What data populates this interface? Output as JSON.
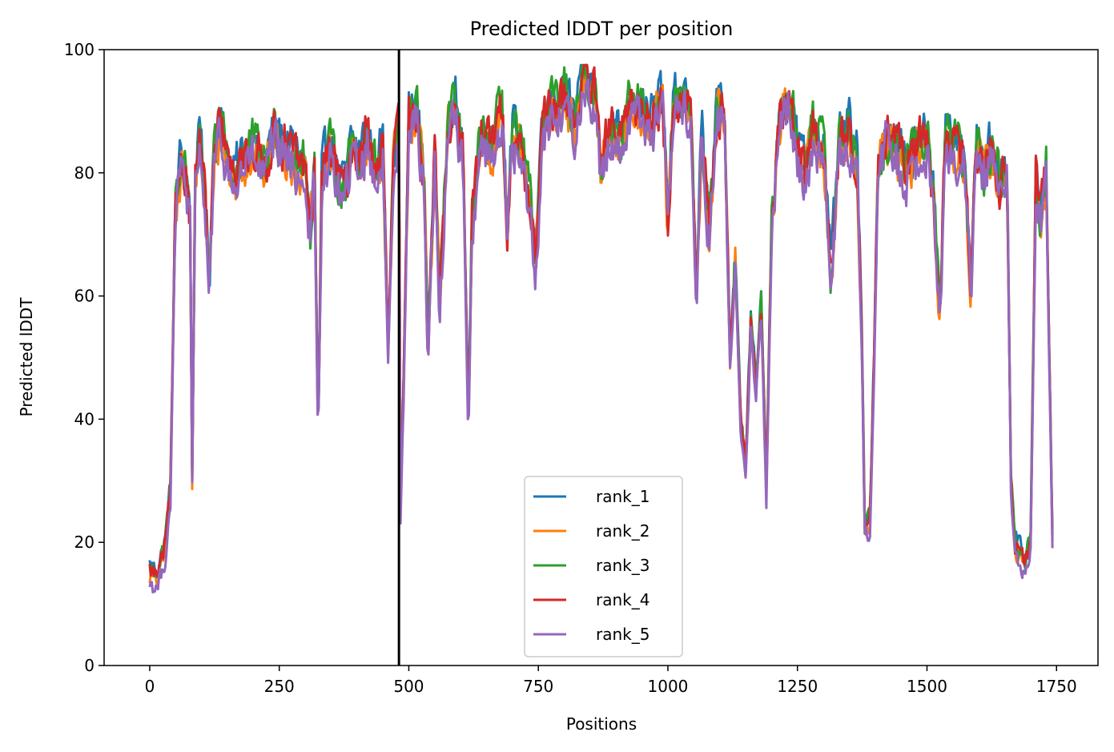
{
  "chart_data": {
    "type": "line",
    "title": "Predicted lDDT per position",
    "xlabel": "Positions",
    "ylabel": "Predicted lDDT",
    "xlim": [
      -88,
      1830
    ],
    "ylim": [
      0,
      100
    ],
    "xticks": [
      0,
      250,
      500,
      750,
      1000,
      1250,
      1500,
      1750
    ],
    "yticks": [
      0,
      20,
      40,
      60,
      80,
      100
    ],
    "grid": false,
    "legend_position": "lower center",
    "vline": {
      "x": 481,
      "color": "#000000"
    },
    "series": [
      {
        "name": "rank_1",
        "color": "#1f77b4",
        "offset": 1.5
      },
      {
        "name": "rank_2",
        "color": "#ff7f0e",
        "offset": -0.5
      },
      {
        "name": "rank_3",
        "color": "#2ca02c",
        "offset": 1.0
      },
      {
        "name": "rank_4",
        "color": "#d62728",
        "offset": 0.5
      },
      {
        "name": "rank_5",
        "color": "#9467bd",
        "offset": -1.5
      }
    ],
    "profile": [
      [
        0,
        15
      ],
      [
        15,
        14
      ],
      [
        30,
        19
      ],
      [
        40,
        28
      ],
      [
        50,
        75
      ],
      [
        60,
        82
      ],
      [
        70,
        80
      ],
      [
        78,
        72
      ],
      [
        82,
        30
      ],
      [
        88,
        80
      ],
      [
        100,
        85
      ],
      [
        115,
        62
      ],
      [
        125,
        84
      ],
      [
        140,
        86
      ],
      [
        160,
        78
      ],
      [
        180,
        82
      ],
      [
        200,
        84
      ],
      [
        220,
        80
      ],
      [
        240,
        86
      ],
      [
        260,
        84
      ],
      [
        280,
        82
      ],
      [
        300,
        80
      ],
      [
        310,
        70
      ],
      [
        318,
        80
      ],
      [
        325,
        36
      ],
      [
        332,
        78
      ],
      [
        345,
        84
      ],
      [
        360,
        80
      ],
      [
        375,
        76
      ],
      [
        390,
        84
      ],
      [
        405,
        82
      ],
      [
        420,
        86
      ],
      [
        435,
        80
      ],
      [
        450,
        84
      ],
      [
        460,
        50
      ],
      [
        470,
        82
      ],
      [
        481,
        88
      ],
      [
        484,
        25
      ],
      [
        490,
        45
      ],
      [
        500,
        88
      ],
      [
        515,
        90
      ],
      [
        530,
        78
      ],
      [
        537,
        50
      ],
      [
        550,
        84
      ],
      [
        560,
        58
      ],
      [
        575,
        88
      ],
      [
        590,
        90
      ],
      [
        605,
        82
      ],
      [
        615,
        38
      ],
      [
        622,
        72
      ],
      [
        640,
        86
      ],
      [
        660,
        84
      ],
      [
        680,
        90
      ],
      [
        690,
        72
      ],
      [
        700,
        86
      ],
      [
        720,
        82
      ],
      [
        735,
        74
      ],
      [
        745,
        66
      ],
      [
        760,
        88
      ],
      [
        780,
        90
      ],
      [
        800,
        92
      ],
      [
        820,
        88
      ],
      [
        840,
        95
      ],
      [
        860,
        92
      ],
      [
        870,
        80
      ],
      [
        890,
        88
      ],
      [
        910,
        84
      ],
      [
        930,
        92
      ],
      [
        950,
        90
      ],
      [
        970,
        88
      ],
      [
        990,
        92
      ],
      [
        1000,
        70
      ],
      [
        1010,
        90
      ],
      [
        1030,
        92
      ],
      [
        1045,
        88
      ],
      [
        1055,
        58
      ],
      [
        1065,
        86
      ],
      [
        1080,
        70
      ],
      [
        1095,
        90
      ],
      [
        1110,
        88
      ],
      [
        1120,
        50
      ],
      [
        1130,
        65
      ],
      [
        1140,
        40
      ],
      [
        1150,
        32
      ],
      [
        1160,
        55
      ],
      [
        1170,
        45
      ],
      [
        1180,
        58
      ],
      [
        1190,
        28
      ],
      [
        1200,
        70
      ],
      [
        1215,
        88
      ],
      [
        1235,
        92
      ],
      [
        1250,
        84
      ],
      [
        1265,
        80
      ],
      [
        1280,
        86
      ],
      [
        1300,
        84
      ],
      [
        1315,
        62
      ],
      [
        1330,
        84
      ],
      [
        1350,
        86
      ],
      [
        1365,
        82
      ],
      [
        1375,
        50
      ],
      [
        1380,
        22
      ],
      [
        1390,
        24
      ],
      [
        1398,
        50
      ],
      [
        1405,
        80
      ],
      [
        1420,
        86
      ],
      [
        1440,
        84
      ],
      [
        1460,
        80
      ],
      [
        1480,
        84
      ],
      [
        1500,
        86
      ],
      [
        1515,
        72
      ],
      [
        1525,
        56
      ],
      [
        1535,
        86
      ],
      [
        1555,
        84
      ],
      [
        1570,
        82
      ],
      [
        1585,
        62
      ],
      [
        1595,
        84
      ],
      [
        1610,
        80
      ],
      [
        1625,
        84
      ],
      [
        1640,
        78
      ],
      [
        1655,
        80
      ],
      [
        1662,
        30
      ],
      [
        1670,
        19
      ],
      [
        1690,
        16
      ],
      [
        1700,
        20
      ],
      [
        1710,
        78
      ],
      [
        1720,
        72
      ],
      [
        1730,
        80
      ],
      [
        1742,
        20
      ]
    ]
  }
}
